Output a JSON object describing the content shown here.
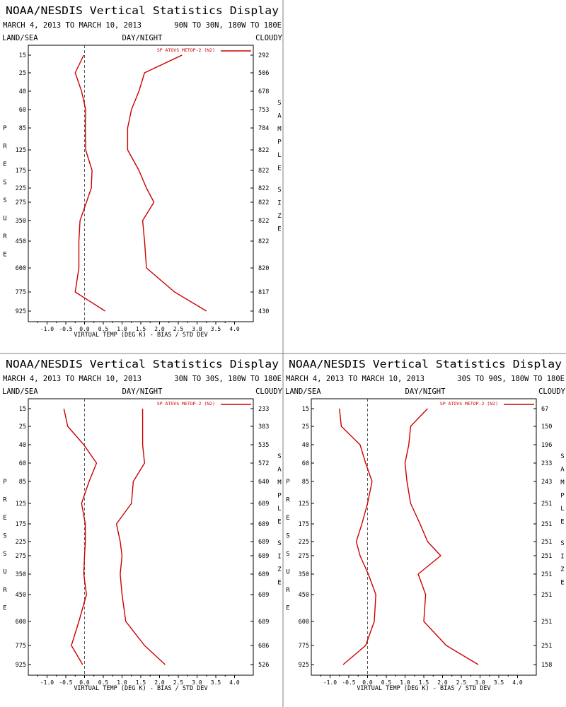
{
  "page": {
    "title": "NOAA/NESDIS Vertical Statistics Display",
    "panel_labels": {
      "left": "LAND/SEA",
      "center": "DAY/NIGHT",
      "right": "CLOUDY"
    },
    "y_side_label": "PRESSURE",
    "sample_side_label": "SAMPLE SIZE",
    "xlabel": "VIRTUAL TEMP (DEG K) - BIAS / STD DEV",
    "x_ticks": [
      "-1.0",
      "-0.5",
      "0.0",
      "0.5",
      "1.0",
      "1.5",
      "2.0",
      "2.5",
      "3.0",
      "3.5",
      "4.0"
    ],
    "colors": {
      "line": "#cc0000",
      "axis": "#000000",
      "divider": "#808080",
      "zero": "#555555"
    }
  },
  "chart_data": [
    {
      "type": "line",
      "date_range": "MARCH 4, 2013 TO MARCH 10, 2013",
      "region": "90N TO 30N, 180W TO 180E",
      "legend": "SP ATOVS METOP-2 (N2)",
      "pressure": [
        15,
        25,
        40,
        60,
        85,
        125,
        175,
        225,
        275,
        350,
        450,
        600,
        775,
        925
      ],
      "sample_size": [
        292,
        506,
        678,
        753,
        784,
        822,
        822,
        822,
        822,
        822,
        822,
        820,
        817,
        430
      ],
      "series": [
        {
          "name": "BIAS",
          "values": [
            -0.02,
            -0.25,
            -0.08,
            0.03,
            0.02,
            0.03,
            0.2,
            0.18,
            0.05,
            -0.12,
            -0.15,
            -0.15,
            -0.25,
            0.55
          ]
        },
        {
          "name": "STD DEV",
          "values": [
            2.6,
            1.6,
            1.45,
            1.25,
            1.15,
            1.15,
            1.45,
            1.65,
            1.85,
            1.55,
            1.6,
            1.65,
            2.4,
            3.25
          ]
        }
      ],
      "xlim": [
        -1.5,
        4.5
      ]
    },
    {
      "type": "line",
      "date_range": "MARCH 4, 2013 TO MARCH 10, 2013",
      "region": "30N TO 30S, 180W TO 180E",
      "legend": "SP ATOVS METOP-2 (N2)",
      "pressure": [
        15,
        25,
        40,
        60,
        85,
        125,
        175,
        225,
        275,
        350,
        450,
        600,
        775,
        925
      ],
      "sample_size": [
        233,
        383,
        535,
        572,
        640,
        689,
        689,
        689,
        689,
        689,
        689,
        689,
        686,
        526
      ],
      "series": [
        {
          "name": "BIAS",
          "values": [
            -0.55,
            -0.45,
            -0.02,
            0.32,
            0.12,
            -0.08,
            0.02,
            0.02,
            0.0,
            -0.02,
            0.05,
            -0.15,
            -0.35,
            -0.05
          ]
        },
        {
          "name": "STD DEV",
          "values": [
            1.55,
            1.55,
            1.55,
            1.6,
            1.3,
            1.25,
            0.85,
            0.95,
            1.0,
            0.95,
            1.0,
            1.1,
            1.6,
            2.15
          ]
        }
      ],
      "xlim": [
        -1.5,
        4.5
      ]
    },
    {
      "type": "line",
      "date_range": "MARCH 4, 2013 TO MARCH 10, 2013",
      "region": "30S TO 90S, 180W TO 180E",
      "legend": "SP ATOVS METOP-2 (N2)",
      "pressure": [
        15,
        25,
        40,
        60,
        85,
        125,
        175,
        225,
        275,
        350,
        450,
        600,
        775,
        925
      ],
      "sample_size": [
        67,
        150,
        196,
        233,
        243,
        251,
        251,
        251,
        251,
        251,
        251,
        251,
        251,
        158
      ],
      "series": [
        {
          "name": "BIAS",
          "values": [
            -0.75,
            -0.7,
            -0.2,
            -0.05,
            0.12,
            0.0,
            -0.15,
            -0.3,
            -0.2,
            0.02,
            0.22,
            0.18,
            -0.05,
            -0.65
          ]
        },
        {
          "name": "STD DEV",
          "values": [
            1.6,
            1.15,
            1.1,
            1.0,
            1.05,
            1.15,
            1.4,
            1.6,
            1.95,
            1.35,
            1.55,
            1.5,
            2.1,
            2.95
          ]
        }
      ],
      "xlim": [
        -1.5,
        4.5
      ]
    }
  ]
}
